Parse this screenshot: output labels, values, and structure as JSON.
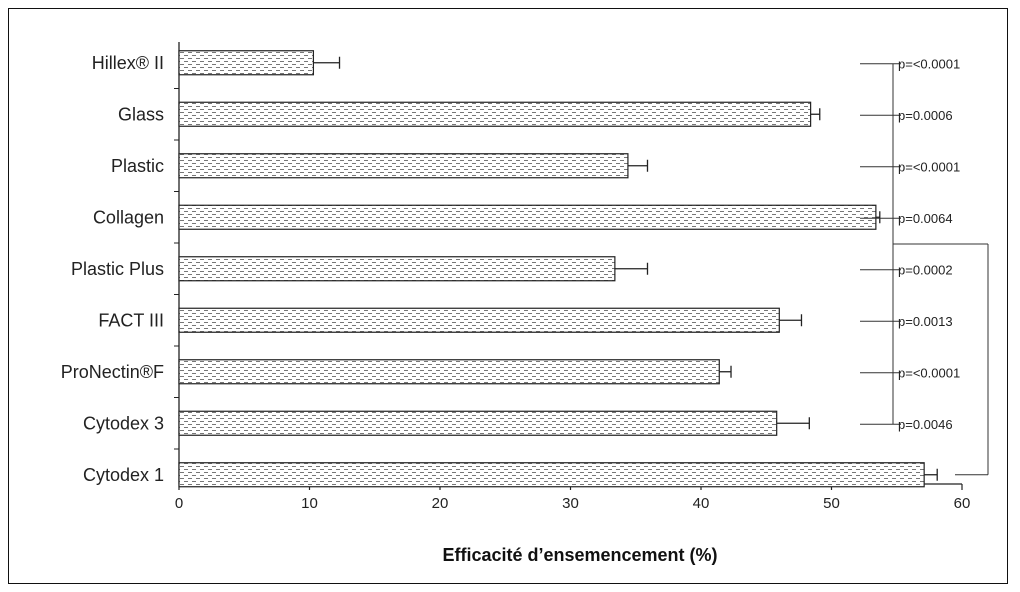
{
  "chart_data": {
    "type": "bar",
    "orientation": "horizontal",
    "categories": [
      "Hillex® II",
      "Glass",
      "Plastic",
      "Collagen",
      "Plastic Plus",
      "FACT III",
      "ProNectin®F",
      "Cytodex 3",
      "Cytodex 1"
    ],
    "values": [
      10.3,
      48.4,
      34.4,
      53.4,
      33.4,
      46.0,
      41.4,
      45.8,
      57.1
    ],
    "errors": [
      2.0,
      0.7,
      1.5,
      0.3,
      2.5,
      1.7,
      0.9,
      2.5,
      1.0
    ],
    "xlabel": "Efficacité d’ensemencement (%)",
    "xlim": [
      0,
      60
    ],
    "xticks": [
      "0",
      "10",
      "20",
      "30",
      "40",
      "50",
      "60"
    ],
    "grid": false,
    "annotations": [
      {
        "category": "Hillex® II",
        "text": "p=<0.0001"
      },
      {
        "category": "Glass",
        "text": "p=0.0006"
      },
      {
        "category": "Plastic",
        "text": "p=<0.0001"
      },
      {
        "category": "Collagen",
        "text": "p=0.0064"
      },
      {
        "category": "Plastic Plus",
        "text": "p=0.0002"
      },
      {
        "category": "FACT III",
        "text": "p=0.0013"
      },
      {
        "category": "ProNectin®F",
        "text": "p=<0.0001"
      },
      {
        "category": "Cytodex 3",
        "text": "p=0.0046"
      }
    ]
  }
}
